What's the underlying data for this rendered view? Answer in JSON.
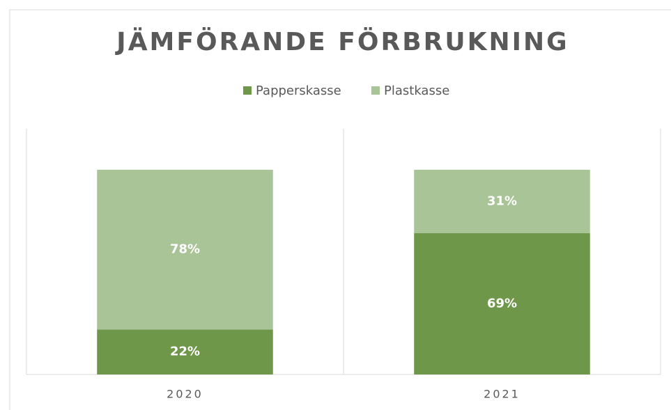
{
  "chart_data": {
    "type": "stacked_bar",
    "title": "JÄMFÖRANDE FÖRBRUKNING",
    "categories": [
      "2020",
      "2021"
    ],
    "series": [
      {
        "name": "Papperskasse",
        "color": "#6e974a",
        "values": [
          22,
          69
        ],
        "value_labels": [
          "22%",
          "69%"
        ]
      },
      {
        "name": "Plastkasse",
        "color": "#a9c497",
        "values": [
          78,
          31
        ],
        "value_labels": [
          "78%",
          "31%"
        ]
      }
    ],
    "ylim": [
      0,
      120
    ],
    "legend": "top"
  }
}
